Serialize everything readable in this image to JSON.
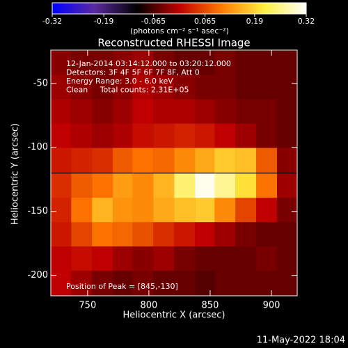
{
  "chart_data": {
    "type": "heatmap",
    "title": "Reconstructed RHESSI Image",
    "annotations": [
      "12-Jan-2014 03:14:12.000 to 03:20:12.000",
      "Detectors: 3F 4F 5F 6F 7F 8F, Att 0",
      "Energy Range: 3.0 - 6.0 keV",
      "Clean     Total counts: 2.31E+05"
    ],
    "peak_label": "Position of Peak = [845,-130]",
    "x_label": "Heliocentric X (arcsec)",
    "y_label": "Heliocentric Y (arcsec)",
    "timestamp": "11-May-2022 18:04",
    "colorbar_label": "(photons cm⁻² s⁻¹ asec⁻²)",
    "colormap": [
      "#0000ff",
      "#5a2aa0",
      "#000000",
      "#c00000",
      "#ff7a00",
      "#ffee40",
      "#ffffff"
    ],
    "clim": [
      -0.32,
      0.32
    ],
    "cticks": [
      -0.32,
      -0.19,
      -0.065,
      0.065,
      0.19,
      0.32
    ],
    "xlim": [
      720,
      921
    ],
    "xticks": [
      750,
      800,
      850,
      900
    ],
    "ylim": [
      -216,
      -24
    ],
    "yticks": [
      -50,
      -100,
      -150,
      -200
    ],
    "x": [
      728,
      745,
      762,
      779,
      795,
      812,
      829,
      846,
      862,
      879,
      896,
      913
    ],
    "y": [
      -34,
      -53,
      -72,
      -91,
      -110,
      -130,
      -149,
      -168,
      -187,
      -206
    ],
    "z": [
      [
        -0.03,
        -0.04,
        -0.04,
        -0.03,
        -0.02,
        -0.04,
        -0.05,
        -0.05,
        -0.04,
        -0.05,
        -0.05,
        -0.05
      ],
      [
        -0.02,
        -0.03,
        -0.04,
        -0.03,
        -0.01,
        -0.02,
        -0.03,
        -0.04,
        -0.04,
        -0.05,
        -0.05,
        -0.05
      ],
      [
        -0.01,
        -0.02,
        -0.03,
        -0.02,
        0.0,
        -0.01,
        -0.01,
        -0.02,
        -0.03,
        -0.04,
        -0.04,
        -0.05
      ],
      [
        0.0,
        -0.01,
        -0.02,
        -0.01,
        0.01,
        0.02,
        0.03,
        0.02,
        0.0,
        -0.02,
        -0.04,
        -0.05
      ],
      [
        0.02,
        0.03,
        0.04,
        0.08,
        0.1,
        0.09,
        0.12,
        0.15,
        0.18,
        0.17,
        0.08,
        -0.03
      ],
      [
        0.04,
        0.08,
        0.1,
        0.14,
        0.12,
        0.16,
        0.24,
        0.31,
        0.26,
        0.2,
        0.1,
        -0.02
      ],
      [
        0.03,
        0.1,
        0.16,
        0.13,
        0.12,
        0.15,
        0.17,
        0.18,
        0.12,
        0.06,
        0.0,
        -0.04
      ],
      [
        0.02,
        0.06,
        0.1,
        0.09,
        0.07,
        0.04,
        0.02,
        0.0,
        -0.02,
        -0.04,
        -0.05,
        -0.05
      ],
      [
        0.0,
        0.01,
        0.0,
        -0.02,
        -0.03,
        -0.02,
        -0.04,
        -0.05,
        -0.05,
        -0.05,
        -0.04,
        -0.05
      ],
      [
        0.0,
        -0.02,
        -0.04,
        -0.05,
        -0.04,
        -0.05,
        -0.05,
        -0.06,
        -0.05,
        -0.05,
        -0.05,
        -0.05
      ]
    ]
  }
}
